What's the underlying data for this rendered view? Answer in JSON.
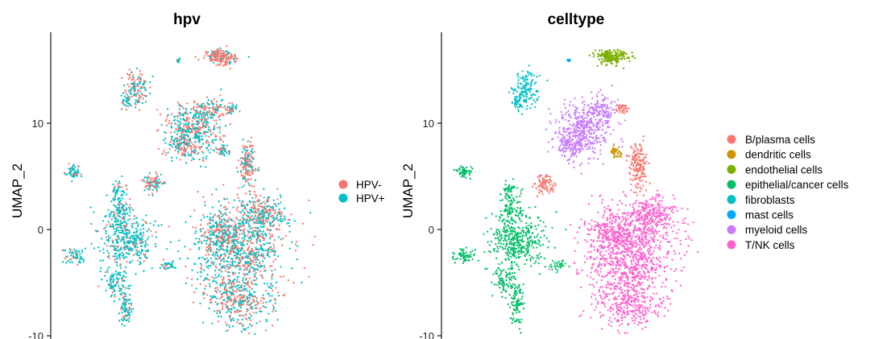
{
  "chart_data": [
    {
      "type": "scatter",
      "title": "hpv",
      "xlabel": "",
      "ylabel": "UMAP_2",
      "y_ticks": [
        10,
        0,
        -10
      ],
      "ylim": [
        -10,
        18
      ],
      "legend": {
        "placement": "right",
        "entries": [
          {
            "label": "HPV-",
            "color": "#F8766D"
          },
          {
            "label": "HPV+",
            "color": "#00BFC4"
          }
        ]
      }
    },
    {
      "type": "scatter",
      "title": "celltype",
      "xlabel": "",
      "ylabel": "UMAP_2",
      "y_ticks": [
        10,
        0,
        -10
      ],
      "ylim": [
        -10,
        18
      ],
      "legend": {
        "placement": "right",
        "entries": [
          {
            "label": "B/plasma cells",
            "color": "#F8766D"
          },
          {
            "label": "dendritic cells",
            "color": "#CD9600"
          },
          {
            "label": "endothelial cells",
            "color": "#7CAE00"
          },
          {
            "label": "epithelial/cancer cells",
            "color": "#00BE67"
          },
          {
            "label": "fibroblasts",
            "color": "#00BFC4"
          },
          {
            "label": "mast cells",
            "color": "#00A9FF"
          },
          {
            "label": "myeloid cells",
            "color": "#C77CFF"
          },
          {
            "label": "T/NK cells",
            "color": "#FF61CC"
          }
        ]
      },
      "clusters": [
        {
          "cell_type": "B/plasma cells",
          "x": [
            -0.6,
            0.0
          ],
          "y": [
            5.0,
            8.8
          ]
        },
        {
          "cell_type": "B/plasma cells",
          "x": [
            -2.3,
            -1.3
          ],
          "y": [
            3.4,
            5.6
          ]
        },
        {
          "cell_type": "B/plasma cells",
          "x": [
            2.3,
            4.0
          ],
          "y": [
            5.0,
            7.8
          ]
        },
        {
          "cell_type": "dendritic cells",
          "x": [
            -0.9,
            -0.2
          ],
          "y": [
            6.8,
            7.6
          ]
        },
        {
          "cell_type": "endothelial cells",
          "x": [
            -1.8,
            0.6
          ],
          "y": [
            14.6,
            16.8
          ]
        },
        {
          "cell_type": "epithelial/cancer cells",
          "x": [
            -12.5,
            -4.0
          ],
          "y": [
            -9.8,
            6.0
          ]
        },
        {
          "cell_type": "fibroblasts",
          "x": [
            -10.8,
            -8.0
          ],
          "y": [
            11.0,
            14.5
          ]
        },
        {
          "cell_type": "mast cells",
          "x": [
            -6.2,
            -5.6
          ],
          "y": [
            15.4,
            15.9
          ]
        },
        {
          "cell_type": "myeloid cells",
          "x": [
            -5.9,
            0.2
          ],
          "y": [
            7.8,
            12.2
          ]
        },
        {
          "cell_type": "T/NK cells",
          "x": [
            -5.5,
            2.0
          ],
          "y": [
            -9.8,
            3.0
          ]
        }
      ]
    }
  ]
}
